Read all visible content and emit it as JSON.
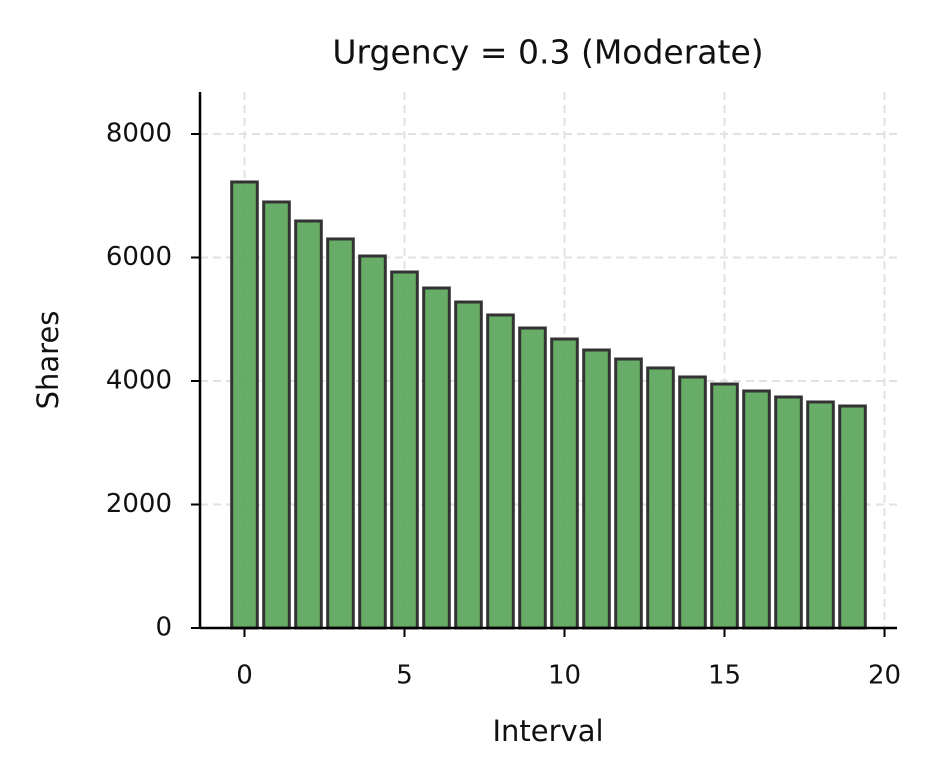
{
  "chart_data": {
    "type": "bar",
    "title": "Urgency = 0.3 (Moderate)",
    "x_label": "Interval",
    "y_label": "Shares",
    "x": [
      0,
      1,
      2,
      3,
      4,
      5,
      6,
      7,
      8,
      9,
      10,
      11,
      12,
      13,
      14,
      15,
      16,
      17,
      18,
      19
    ],
    "values": [
      7223,
      6899,
      6591,
      6300,
      6024,
      5765,
      5506,
      5279,
      5069,
      4858,
      4680,
      4502,
      4356,
      4211,
      4065,
      3951,
      3838,
      3741,
      3660,
      3595
    ],
    "color": "#5aa65a",
    "edge_color": "#333333",
    "bar_width": 0.8,
    "xlim": [
      -1.39,
      20.39
    ],
    "xticks": [
      0,
      5,
      10,
      15,
      20
    ],
    "ylim": [
      0,
      8680
    ],
    "yticks": [
      0,
      2000,
      4000,
      6000,
      8000
    ],
    "grid": true
  }
}
